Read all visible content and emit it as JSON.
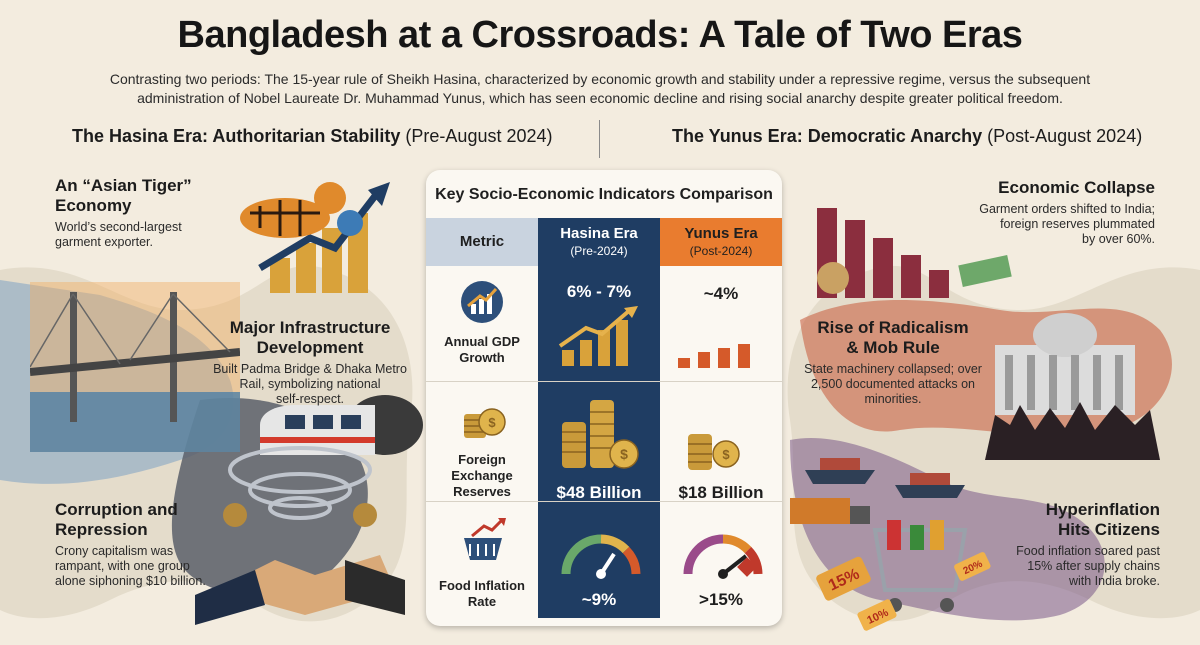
{
  "title": "Bangladesh at a Crossroads: A Tale of Two Eras",
  "intro_line1": "Contrasting two periods: The 15-year rule of Sheikh Hasina, characterized by economic growth and stability under a repressive regime, versus the subsequent",
  "intro_line2": "administration of Nobel Laureate Dr. Muhammad Yunus, which has seen economic decline and rising social anarchy despite greater political freedom.",
  "left_era": {
    "name": "The Hasina Era: Authoritarian Stability",
    "period": "(Pre-August 2024)"
  },
  "right_era": {
    "name": "The Yunus Era: Democratic Anarchy",
    "period": "(Post-August 2024)"
  },
  "left_items": [
    {
      "title_1": "An “Asian Tiger”",
      "title_2": "Economy",
      "body_1": "World’s second-largest",
      "body_2": "garment exporter.",
      "body_3": ""
    },
    {
      "title_1": "Major Infrastructure",
      "title_2": "Development",
      "body_1": "Built Padma Bridge & Dhaka Metro",
      "body_2": "Rail, symbolizing national",
      "body_3": "self-respect."
    },
    {
      "title_1": "Corruption and",
      "title_2": "Repression",
      "body_1": "Crony capitalism was",
      "body_2": "rampant, with one group",
      "body_3": "alone siphoning $10 billion."
    }
  ],
  "right_items": [
    {
      "title_1": "Economic Collapse",
      "title_2": "",
      "body_1": "Garment orders shifted to India;",
      "body_2": "foreign reserves plummated",
      "body_3": "by over 60%."
    },
    {
      "title_1": "Rise of Radicalism",
      "title_2": "& Mob Rule",
      "body_1": "State machinery collapsed; over",
      "body_2": "2,500 documented attacks on",
      "body_3": "minorities."
    },
    {
      "title_1": "Hyperinflation",
      "title_2": "Hits Citizens",
      "body_1": "Food inflation soared past",
      "body_2": "15% after supply chains",
      "body_3": "with India broke."
    }
  ],
  "table": {
    "title": "Key Socio-Economic Indicators Comparison",
    "col_metric": "Metric",
    "col_hasina": "Hasina Era",
    "col_hasina_sub": "(Pre-2024)",
    "col_yunus": "Yunus Era",
    "col_yunus_sub": "(Post-2024)",
    "rows": [
      {
        "metric_1": "Annual GDP",
        "metric_2": "Growth",
        "metric_3": "",
        "hasina": "6% - 7%",
        "yunus": "~4%"
      },
      {
        "metric_1": "Foreign",
        "metric_2": "Exchange",
        "metric_3": "Reserves",
        "hasina": "$48 Billion",
        "yunus": "$18 Billion"
      },
      {
        "metric_1": "Food Inflation",
        "metric_2": "Rate",
        "metric_3": "",
        "hasina": "~9%",
        "yunus": ">15%"
      }
    ]
  },
  "illustration_labels": {
    "discount_15": "15%",
    "discount_20": "20%",
    "discount_10": "10%"
  },
  "colors": {
    "hasina_blue": "#1f3d63",
    "yunus_orange": "#e97c2f",
    "gold": "#d9a23a",
    "background": "#f3ecdf"
  }
}
